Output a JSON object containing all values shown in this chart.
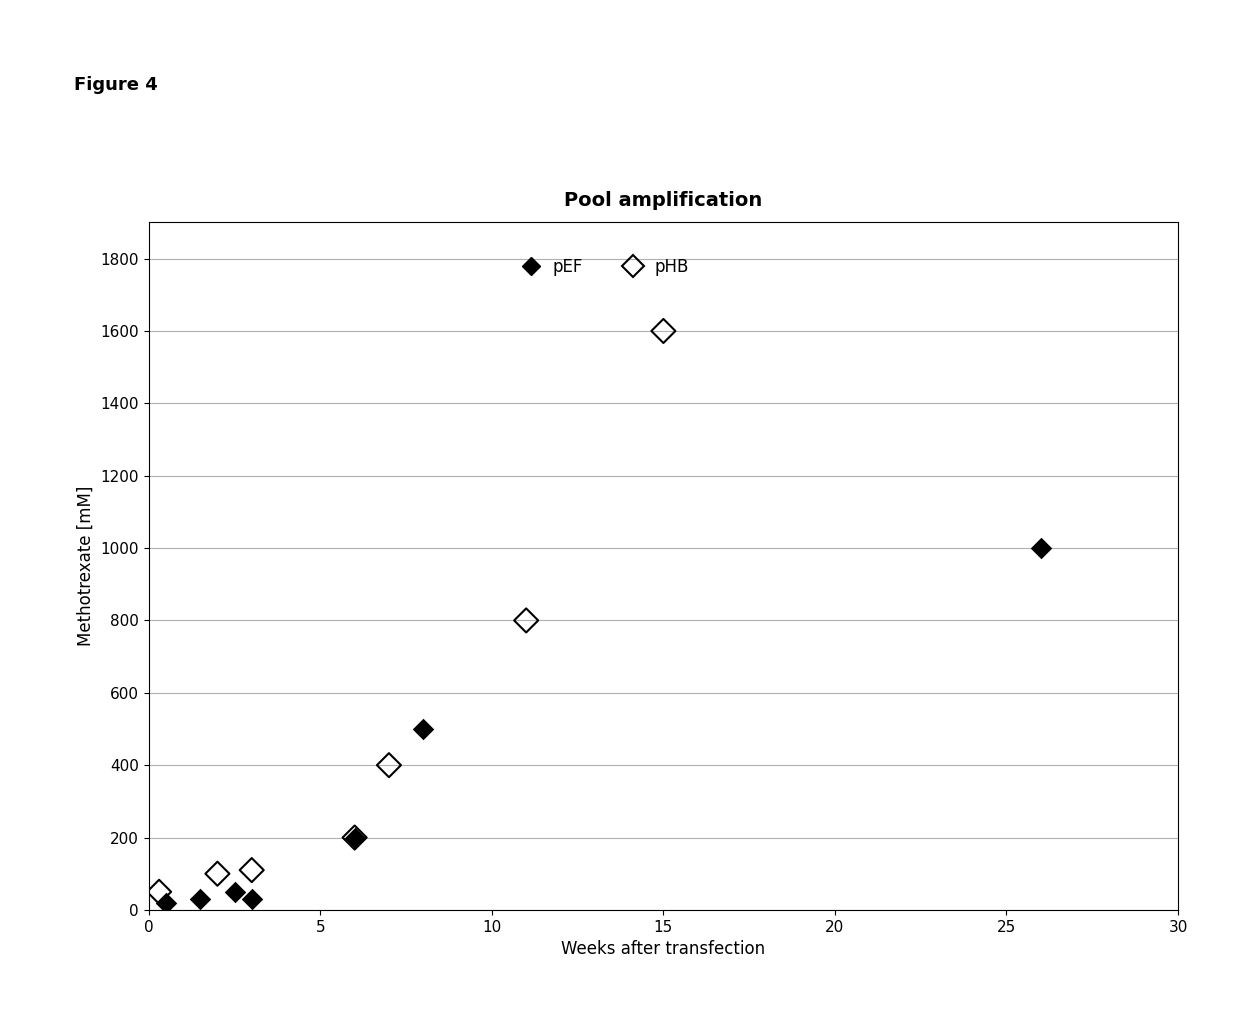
{
  "title": "Pool amplification",
  "xlabel": "Weeks after transfection",
  "ylabel": "Methotrexate [mM]",
  "figure_label": "Figure 4",
  "pEF_x": [
    0.5,
    1.5,
    2.5,
    3,
    6,
    8,
    26
  ],
  "pEF_y": [
    20,
    30,
    50,
    30,
    200,
    500,
    1000
  ],
  "pHB_x": [
    0.3,
    2,
    3,
    6,
    7,
    11,
    15
  ],
  "pHB_y": [
    50,
    100,
    110,
    200,
    400,
    800,
    1600
  ],
  "xlim": [
    0,
    30
  ],
  "ylim": [
    0,
    1900
  ],
  "xticks": [
    0,
    5,
    10,
    15,
    20,
    25,
    30
  ],
  "yticks": [
    0,
    200,
    400,
    600,
    800,
    1000,
    1200,
    1400,
    1600,
    1800
  ],
  "background_color": "#ffffff",
  "grid_color": "#b0b0b0",
  "pEF_color": "#000000",
  "pHB_color": "#000000",
  "title_fontsize": 14,
  "label_fontsize": 12,
  "tick_fontsize": 11,
  "legend_fontsize": 12,
  "figure_label_fontsize": 13
}
